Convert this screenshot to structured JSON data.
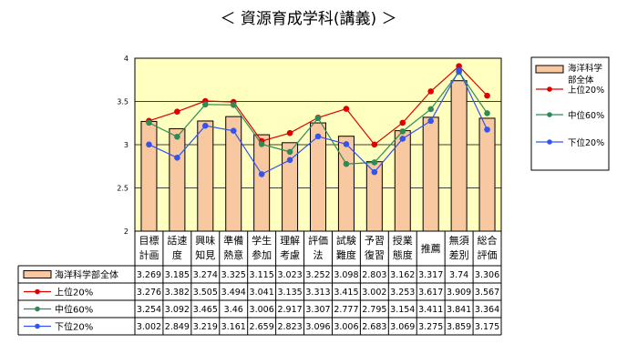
{
  "chart_data": {
    "type": "bar",
    "title": "＜ 資源育成学科(講義) ＞",
    "xlabel": "",
    "ylabel": "",
    "ylim": [
      2,
      4
    ],
    "yticks": [
      "2",
      "2.5",
      "3",
      "3.5",
      "4"
    ],
    "grid": true,
    "legend_position": "right",
    "categories": [
      [
        "目標",
        "計画"
      ],
      [
        "話速",
        "度"
      ],
      [
        "興味",
        "知見"
      ],
      [
        "準備",
        "熱意"
      ],
      [
        "学生",
        "参加"
      ],
      [
        "理解",
        "考慮"
      ],
      [
        "評価",
        "法"
      ],
      [
        "試験",
        "難度"
      ],
      [
        "予習",
        "復習"
      ],
      [
        "授業",
        "態度"
      ],
      [
        "推薦"
      ],
      [
        "無須",
        "差別"
      ],
      [
        "総合",
        "評価"
      ]
    ],
    "series": [
      {
        "name": "海洋科学部全体",
        "kind": "bar",
        "color": "#f8c8a0",
        "legend_label": [
          "海洋科学",
          "部全体"
        ],
        "values": [
          3.269,
          3.185,
          3.274,
          3.325,
          3.115,
          3.023,
          3.252,
          3.098,
          2.803,
          3.162,
          3.317,
          3.74,
          3.306
        ]
      },
      {
        "name": "上位20%",
        "kind": "line",
        "color": "#dd0000",
        "values": [
          3.276,
          3.382,
          3.505,
          3.494,
          3.041,
          3.135,
          3.313,
          3.415,
          3.002,
          3.253,
          3.617,
          3.909,
          3.567
        ]
      },
      {
        "name": "中位60%",
        "kind": "line",
        "color": "#2e8b57",
        "values": [
          3.254,
          3.092,
          3.465,
          3.46,
          3.006,
          2.917,
          3.307,
          2.777,
          2.795,
          3.154,
          3.411,
          3.841,
          3.364
        ]
      },
      {
        "name": "下位20%",
        "kind": "line",
        "color": "#3355ee",
        "values": [
          3.002,
          2.849,
          3.219,
          3.161,
          2.659,
          2.823,
          3.096,
          3.006,
          2.683,
          3.069,
          3.275,
          3.859,
          3.175
        ]
      }
    ],
    "table": [
      [
        "3.269",
        "3.185",
        "3.274",
        "3.325",
        "3.115",
        "3.023",
        "3.252",
        "3.098",
        "2.803",
        "3.162",
        "3.317",
        "3.74",
        "3.306"
      ],
      [
        "3.276",
        "3.382",
        "3.505",
        "3.494",
        "3.041",
        "3.135",
        "3.313",
        "3.415",
        "3.002",
        "3.253",
        "3.617",
        "3.909",
        "3.567"
      ],
      [
        "3.254",
        "3.092",
        "3.465",
        "3.46",
        "3.006",
        "2.917",
        "3.307",
        "2.777",
        "2.795",
        "3.154",
        "3.411",
        "3.841",
        "3.364"
      ],
      [
        "3.002",
        "2.849",
        "3.219",
        "3.161",
        "2.659",
        "2.823",
        "3.096",
        "3.006",
        "2.683",
        "3.069",
        "3.275",
        "3.859",
        "3.175"
      ]
    ],
    "plot_background": "#ffffc0"
  }
}
